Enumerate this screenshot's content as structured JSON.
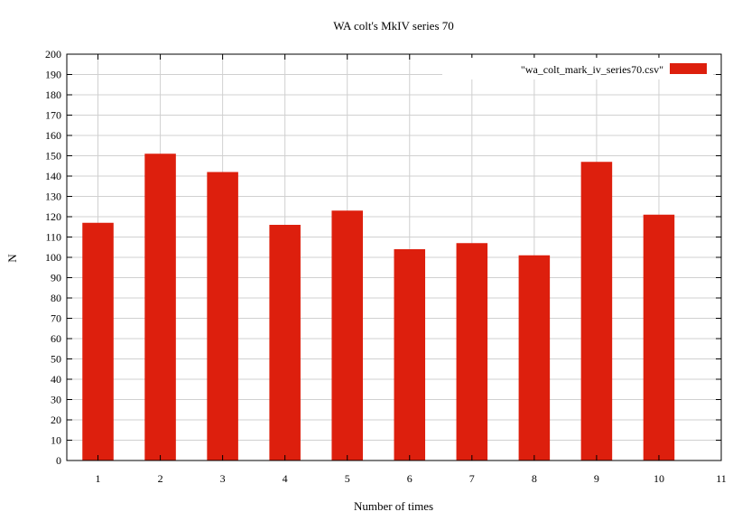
{
  "chart_data": {
    "type": "bar",
    "title": "WA colt's MkIV series 70",
    "xlabel": "Number of times",
    "ylabel": "N",
    "legend": {
      "label": "\"wa_colt_mark_iv_series70.csv\"",
      "position": "top-right"
    },
    "series": [
      {
        "name": "\"wa_colt_mark_iv_series70.csv\"",
        "x": [
          1,
          2,
          3,
          4,
          5,
          6,
          7,
          8,
          9,
          10
        ],
        "values": [
          117,
          151,
          142,
          116,
          123,
          104,
          107,
          101,
          147,
          121
        ]
      }
    ],
    "xlim": [
      0.5,
      11
    ],
    "ylim": [
      0,
      200
    ],
    "xticks": [
      "1",
      "2",
      "3",
      "4",
      "5",
      "6",
      "7",
      "8",
      "9",
      "10",
      "11"
    ],
    "yticks": [
      "0",
      "10",
      "20",
      "30",
      "40",
      "50",
      "60",
      "70",
      "80",
      "90",
      "100",
      "110",
      "120",
      "130",
      "140",
      "150",
      "160",
      "170",
      "180",
      "190",
      "200"
    ],
    "grid": true,
    "colors": {
      "bar": "#dd1f0d",
      "grid": "#d0d0d0",
      "axis": "#000000"
    }
  }
}
